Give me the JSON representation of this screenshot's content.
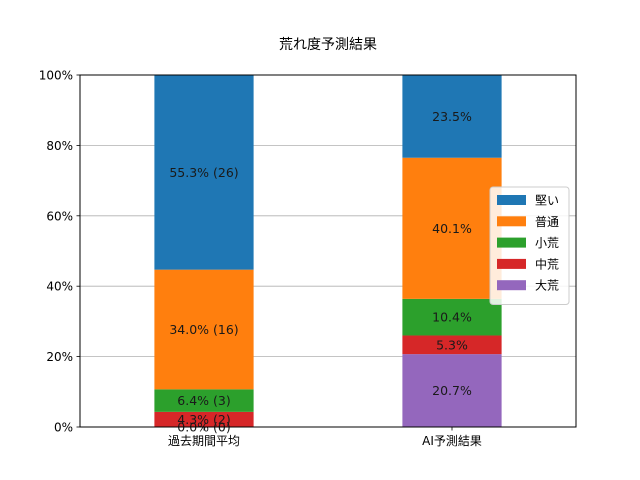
{
  "chart_data": {
    "type": "bar",
    "stacked": true,
    "title": "荒れ度予測結果",
    "xlabel": "",
    "ylabel": "",
    "ylim": [
      0,
      100
    ],
    "y_ticks": [
      "0%",
      "20%",
      "40%",
      "60%",
      "80%",
      "100%"
    ],
    "grid": "horizontal",
    "legend_position": "center-right",
    "categories": [
      "過去期間平均",
      "AI予測結果"
    ],
    "series": [
      {
        "name": "大荒",
        "color": "#9467bd",
        "values": [
          0.0,
          20.7
        ],
        "labels": [
          "0.0% (0)",
          "20.7%"
        ]
      },
      {
        "name": "中荒",
        "color": "#d62728",
        "values": [
          4.3,
          5.3
        ],
        "labels": [
          "4.3% (2)",
          "5.3%"
        ]
      },
      {
        "name": "小荒",
        "color": "#2ca02c",
        "values": [
          6.4,
          10.4
        ],
        "labels": [
          "6.4% (3)",
          "10.4%"
        ]
      },
      {
        "name": "普通",
        "color": "#ff7f0e",
        "values": [
          34.0,
          40.1
        ],
        "labels": [
          "34.0% (16)",
          "40.1%"
        ]
      },
      {
        "name": "堅い",
        "color": "#1f77b4",
        "values": [
          55.3,
          23.5
        ],
        "labels": [
          "55.3% (26)",
          "23.5%"
        ]
      }
    ],
    "legend_order": [
      "堅い",
      "普通",
      "小荒",
      "中荒",
      "大荒"
    ]
  }
}
